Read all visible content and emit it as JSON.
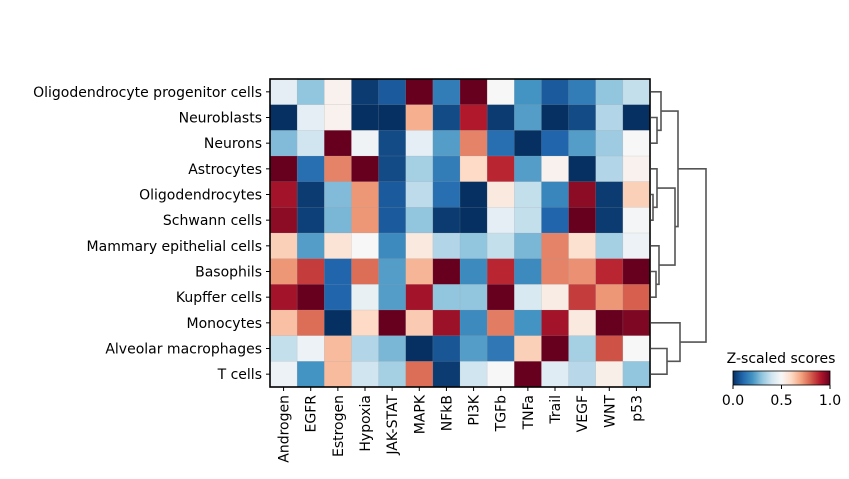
{
  "chart_data": {
    "type": "heatmap",
    "title": "",
    "xlabel": "",
    "ylabel": "",
    "colormap": "RdBu_r",
    "columns": [
      "Androgen",
      "EGFR",
      "Estrogen",
      "Hypoxia",
      "JAK-STAT",
      "MAPK",
      "NFkB",
      "PI3K",
      "TGFb",
      "TNFa",
      "Trail",
      "VEGF",
      "WNT",
      "p53"
    ],
    "rows": [
      "Oligodendrocyte progenitor cells",
      "Neuroblasts",
      "Neurons",
      "Astrocytes",
      "Oligodendrocytes",
      "Schwann cells",
      "Mammary epithelial cells",
      "Basophils",
      "Kupffer cells",
      "Monocytes",
      "Alveolar macrophages",
      "T cells"
    ],
    "values": [
      [
        0.45,
        0.3,
        0.52,
        0.02,
        0.08,
        1.0,
        0.15,
        1.0,
        0.5,
        0.2,
        0.08,
        0.15,
        0.3,
        0.38
      ],
      [
        0.0,
        0.45,
        0.52,
        0.0,
        0.0,
        0.68,
        0.05,
        0.9,
        0.02,
        0.22,
        0.0,
        0.05,
        0.35,
        0.0
      ],
      [
        0.28,
        0.4,
        1.0,
        0.48,
        0.05,
        0.45,
        0.22,
        0.75,
        0.12,
        0.0,
        0.1,
        0.22,
        0.32,
        0.5
      ],
      [
        1.0,
        0.12,
        0.75,
        1.0,
        0.05,
        0.33,
        0.15,
        0.6,
        0.88,
        0.22,
        0.52,
        0.0,
        0.35,
        0.52
      ],
      [
        0.92,
        0.02,
        0.28,
        0.72,
        0.08,
        0.37,
        0.12,
        0.0,
        0.55,
        0.38,
        0.17,
        0.95,
        0.02,
        0.62
      ],
      [
        0.95,
        0.03,
        0.27,
        0.72,
        0.08,
        0.3,
        0.02,
        0.0,
        0.45,
        0.38,
        0.1,
        1.0,
        0.02,
        0.49
      ],
      [
        0.62,
        0.22,
        0.57,
        0.5,
        0.18,
        0.55,
        0.35,
        0.3,
        0.38,
        0.27,
        0.75,
        0.58,
        0.33,
        0.47
      ],
      [
        0.72,
        0.85,
        0.1,
        0.78,
        0.22,
        0.67,
        1.0,
        0.18,
        0.88,
        0.18,
        0.75,
        0.73,
        0.88,
        1.0
      ],
      [
        0.92,
        1.0,
        0.1,
        0.46,
        0.22,
        0.92,
        0.3,
        0.3,
        1.0,
        0.42,
        0.54,
        0.85,
        0.72,
        0.8
      ],
      [
        0.65,
        0.78,
        0.0,
        0.6,
        1.0,
        0.63,
        0.93,
        0.18,
        0.76,
        0.2,
        0.92,
        0.55,
        1.0,
        0.97
      ],
      [
        0.38,
        0.47,
        0.66,
        0.35,
        0.27,
        0.0,
        0.07,
        0.22,
        0.14,
        0.62,
        1.0,
        0.33,
        0.82,
        0.5
      ],
      [
        0.47,
        0.2,
        0.66,
        0.4,
        0.33,
        0.78,
        0.02,
        0.4,
        0.5,
        1.0,
        0.44,
        0.36,
        0.53,
        0.3
      ]
    ],
    "colorbar": {
      "title": "Z-scaled scores",
      "range": [
        0.0,
        1.0
      ],
      "ticks": [
        "0.0",
        "0.5",
        "1.0"
      ]
    },
    "dendrogram": "right"
  }
}
